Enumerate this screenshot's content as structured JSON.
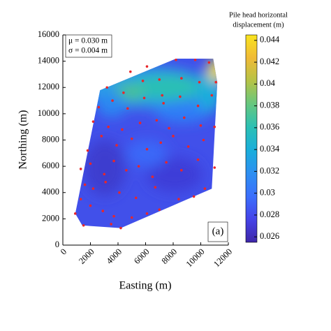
{
  "chart_data": {
    "type": "scatter",
    "x_label": "Easting (m)",
    "y_label": "Northing (m)",
    "xlim": [
      0,
      12000
    ],
    "ylim": [
      0,
      16000
    ],
    "xticks": [
      0,
      2000,
      4000,
      6000,
      8000,
      10000,
      12000
    ],
    "yticks": [
      0,
      2000,
      4000,
      6000,
      8000,
      10000,
      12000,
      14000,
      16000
    ],
    "annotations": [
      "μ = 0.030 m",
      "σ = 0.004 m",
      "(a)"
    ],
    "colorbar_label": [
      "Pile head horizontal",
      "displacement (m)"
    ],
    "clim": [
      0.0255,
      0.0445
    ],
    "cticks": [
      0.026,
      0.028,
      0.03,
      0.032,
      0.034,
      0.036,
      0.038,
      0.04,
      0.042,
      0.044
    ],
    "colormap": [
      "#3e26a8",
      "#4543e8",
      "#3b6ffc",
      "#2d8ff1",
      "#1aaedb",
      "#2bc0b4",
      "#66c77f",
      "#b5c347",
      "#f0ba36",
      "#f9e41f"
    ],
    "point_color": "#e8262a",
    "x": [
      900,
      1500,
      3500,
      4200,
      1300,
      2000,
      2900,
      3700,
      5000,
      6100,
      7000,
      1600,
      2200,
      3100,
      4100,
      5300,
      6700,
      8400,
      9500,
      10300,
      1300,
      2000,
      3000,
      3700,
      4600,
      5500,
      6500,
      7500,
      8600,
      9800,
      11000,
      1800,
      2800,
      3900,
      5000,
      6100,
      7100,
      8000,
      9100,
      10200,
      2200,
      3300,
      4300,
      5600,
      6800,
      7700,
      8800,
      10000,
      11000,
      2600,
      3600,
      4700,
      5900,
      7300,
      8500,
      9800,
      10800,
      3200,
      4400,
      5800,
      7200,
      8600,
      9900,
      11100,
      4900,
      6100,
      7000,
      8200,
      9600,
      10600
    ],
    "y": [
      2400,
      1500,
      1600,
      1300,
      3500,
      3000,
      2600,
      2200,
      2100,
      2400,
      2700,
      4600,
      4300,
      4800,
      4000,
      3600,
      4400,
      3500,
      3700,
      4300,
      5800,
      6200,
      5400,
      6400,
      5700,
      6000,
      5200,
      6300,
      5700,
      6500,
      5900,
      7200,
      8300,
      7600,
      8100,
      7300,
      7800,
      8300,
      7500,
      8000,
      9400,
      9000,
      8800,
      9300,
      9500,
      8900,
      9700,
      9100,
      9000,
      10500,
      11000,
      10400,
      11200,
      10800,
      11300,
      10600,
      11400,
      12000,
      11600,
      12500,
      11400,
      12700,
      12400,
      12400,
      13200,
      13600,
      12600,
      14100,
      14100,
      13900
    ]
  }
}
